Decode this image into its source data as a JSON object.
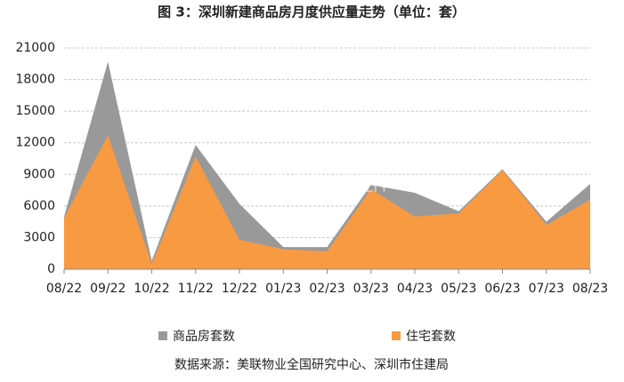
{
  "chart_data": {
    "type": "area",
    "title": "图 3：深圳新建商品房月度供应量走势（单位：套）",
    "source": "数据来源：美联物业全国研究中心、深圳市住建局",
    "watermark": [
      "美联物业",
      "MIDLAND REALTY"
    ],
    "categories": [
      "08/22",
      "09/22",
      "10/22",
      "11/22",
      "12/22",
      "01/23",
      "02/23",
      "03/23",
      "04/23",
      "05/23",
      "06/23",
      "07/23",
      "08/23"
    ],
    "series": [
      {
        "name": "商品房套数",
        "color": "#999999",
        "values": [
          5000,
          19700,
          800,
          11800,
          6200,
          2100,
          2100,
          8000,
          7250,
          5500,
          9500,
          4500,
          8100
        ]
      },
      {
        "name": "住宅套数",
        "color": "#f79a42",
        "values": [
          4900,
          12700,
          500,
          10700,
          2800,
          1900,
          1700,
          7600,
          5000,
          5300,
          9400,
          4200,
          6600
        ]
      }
    ],
    "ylim": [
      0,
      21000
    ],
    "yticks": [
      0,
      3000,
      6000,
      9000,
      12000,
      15000,
      18000,
      21000
    ],
    "grid": true
  }
}
